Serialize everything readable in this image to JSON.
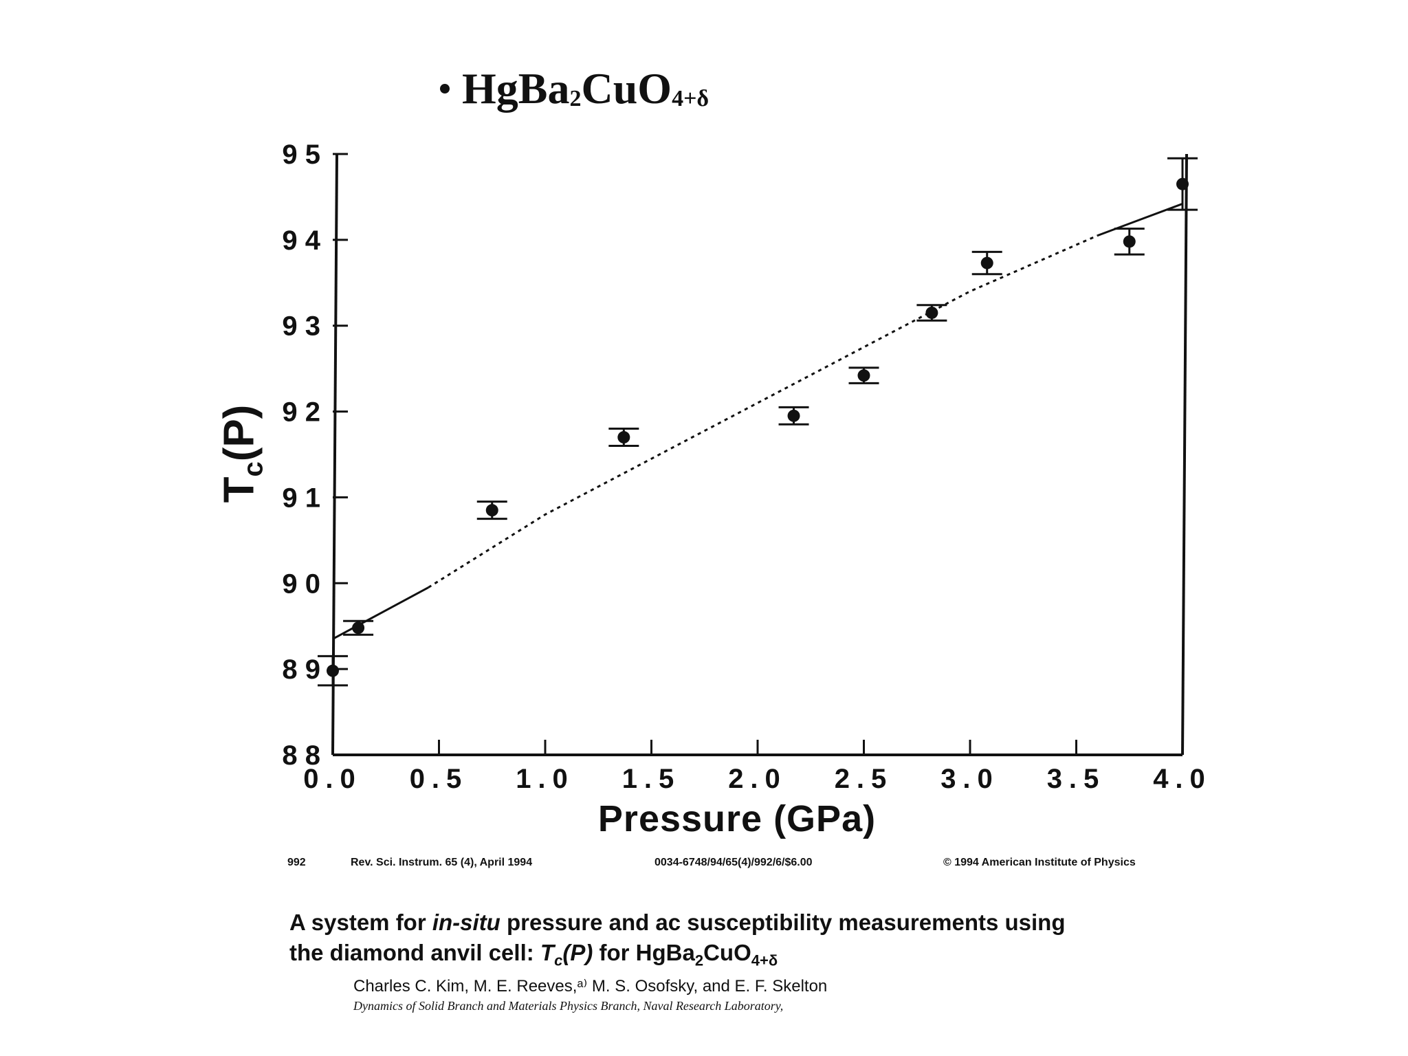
{
  "chart_data": {
    "type": "scatter",
    "title_prefix": "HgBa",
    "title_sub1": "2",
    "title_mid": "CuO",
    "title_sub2": "4+δ",
    "xlabel": "Pressure  (GPa)",
    "ylabel_main": "T",
    "ylabel_sub": "c",
    "ylabel_rest": "(P)",
    "xlim": [
      0.0,
      4.0
    ],
    "ylim": [
      88,
      95
    ],
    "xticks": [
      0.0,
      0.5,
      1.0,
      1.5,
      2.0,
      2.5,
      3.0,
      3.5,
      4.0
    ],
    "xtick_labels": [
      "0.0",
      "0.5",
      "1.0",
      "1.5",
      "2.0",
      "2.5",
      "3.0",
      "3.5",
      "4.0"
    ],
    "yticks": [
      88,
      89,
      90,
      91,
      92,
      93,
      94,
      95
    ],
    "ytick_labels": [
      "8 8",
      "8 9",
      "9 0",
      "9 1",
      "9 2",
      "9 3",
      "9 4",
      "9 5"
    ],
    "points": [
      {
        "x": 0.0,
        "y": 88.98,
        "err": 0.17
      },
      {
        "x": 0.12,
        "y": 89.48,
        "err": 0.08
      },
      {
        "x": 0.75,
        "y": 90.85,
        "err": 0.1
      },
      {
        "x": 1.37,
        "y": 91.7,
        "err": 0.1
      },
      {
        "x": 2.17,
        "y": 91.95,
        "err": 0.1
      },
      {
        "x": 2.5,
        "y": 92.42,
        "err": 0.09
      },
      {
        "x": 2.82,
        "y": 93.15,
        "err": 0.09
      },
      {
        "x": 3.08,
        "y": 93.73,
        "err": 0.13
      },
      {
        "x": 3.75,
        "y": 93.98,
        "err": 0.15
      },
      {
        "x": 4.0,
        "y": 94.65,
        "err": 0.3
      }
    ],
    "fit_line": [
      {
        "x": 0.0,
        "y": 89.35
      },
      {
        "x": 0.45,
        "y": 89.95
      },
      {
        "x": 1.0,
        "y": 90.8
      },
      {
        "x": 2.0,
        "y": 92.1
      },
      {
        "x": 3.0,
        "y": 93.4
      },
      {
        "x": 3.6,
        "y": 94.05
      },
      {
        "x": 4.0,
        "y": 94.42
      }
    ],
    "grid": false
  },
  "footer": {
    "page": "992",
    "journal": "Rev. Sci. Instrum. 65 (4), April 1994",
    "code": "0034-6748/94/65(4)/992/6/$6.00",
    "copyright": "© 1994 American Institute of Physics"
  },
  "caption": {
    "part1": "A system for ",
    "italic": "in-situ",
    "part2": " pressure and ac susceptibility measurements using",
    "line2_a": "the diamond anvil cell: ",
    "line2_T": "T",
    "line2_c": "c",
    "line2_P": "(P)",
    "line2_b": " for HgBa",
    "line2_sub1": "2",
    "line2_c2": "CuO",
    "line2_sub2": "4+δ"
  },
  "authors": "Charles C. Kim, M. E. Reeves,ᵃ⁾ M. S. Osofsky, and E. F. Skelton",
  "affiliation": "Dynamics of Solid Branch and Materials Physics Branch, Naval Research Laboratory,"
}
